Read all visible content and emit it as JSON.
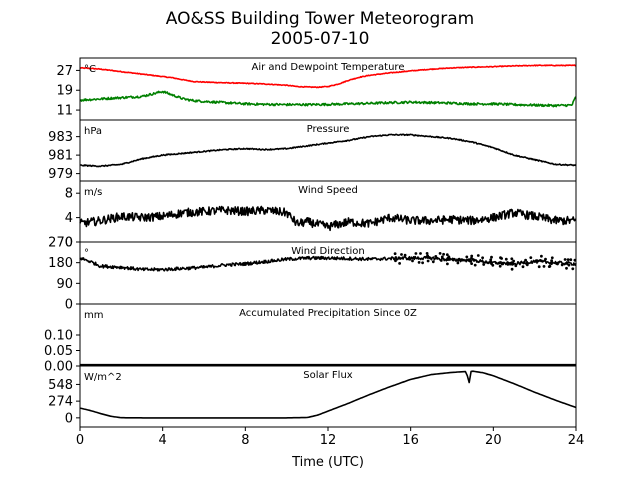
{
  "title_line1": "AO&SS Building Tower Meteorogram",
  "title_line2": "2005-07-10",
  "chart_data": {
    "type": "line",
    "xlabel": "Time (UTC)",
    "x_ticks": [
      "0",
      "4",
      "8",
      "12",
      "16",
      "20",
      "24"
    ],
    "xlim": [
      0,
      24
    ],
    "panels": [
      {
        "id": "temp",
        "title": "Air and Dewpoint Temperature",
        "unit": "°C",
        "ylim": [
          7,
          32
        ],
        "yticks": [
          {
            "v": 27,
            "label": "27"
          },
          {
            "v": 19,
            "label": "19"
          },
          {
            "v": 11,
            "label": "11"
          }
        ],
        "series": [
          {
            "color": "#ff0000",
            "noise": 0.15,
            "x": [
              0,
              0.5,
              1,
              1.5,
              2,
              2.5,
              3,
              3.5,
              4,
              4.5,
              5,
              5.5,
              6,
              7,
              8,
              9,
              10,
              10.5,
              11,
              11.5,
              12,
              12.5,
              13,
              13.5,
              14,
              15,
              16,
              17,
              18,
              19,
              20,
              21,
              22,
              23,
              24
            ],
            "y": [
              28,
              27.8,
              27.5,
              27,
              26.5,
              26,
              25.5,
              25,
              24.5,
              24,
              23.2,
              22.5,
              22.3,
              22,
              21.8,
              21.5,
              21,
              20.5,
              20.3,
              20.2,
              20.5,
              21.5,
              23,
              24.2,
              25,
              26,
              26.8,
              27.5,
              28,
              28.3,
              28.5,
              28.8,
              29,
              29,
              29
            ]
          },
          {
            "color": "#008000",
            "noise": 0.45,
            "x": [
              0,
              1,
              2,
              3,
              3.5,
              4,
              4.5,
              5,
              5.5,
              6,
              7,
              8,
              9,
              10,
              11,
              12,
              13,
              14,
              15,
              16,
              17,
              18,
              19,
              20,
              21,
              22,
              23,
              23.8,
              24
            ],
            "y": [
              15,
              15.5,
              16,
              16.5,
              17.5,
              18.5,
              17,
              15.5,
              14.8,
              14.5,
              14,
              13.5,
              13.3,
              13.2,
              13.2,
              13.3,
              13.5,
              13.7,
              14,
              14.2,
              14,
              13.8,
              13.5,
              13.5,
              13.2,
              13,
              12.8,
              13,
              16.5
            ]
          }
        ]
      },
      {
        "id": "pressure",
        "title": "Pressure",
        "unit": "hPa",
        "ylim": [
          978.2,
          984.8
        ],
        "yticks": [
          {
            "v": 983,
            "label": "983"
          },
          {
            "v": 981,
            "label": "981"
          },
          {
            "v": 979,
            "label": "979"
          }
        ],
        "series": [
          {
            "color": "#000000",
            "noise": 0.06,
            "x": [
              0,
              1,
              2,
              3,
              4,
              5,
              6,
              7,
              8,
              9,
              10,
              11,
              12,
              13,
              14,
              15,
              16,
              17,
              18,
              19,
              20,
              21,
              22,
              23,
              24
            ],
            "y": [
              979.9,
              979.8,
              980.0,
              980.6,
              981.0,
              981.2,
              981.4,
              981.6,
              981.7,
              981.6,
              981.7,
              982.0,
              982.3,
              982.6,
              983.0,
              983.2,
              983.2,
              983.0,
              982.8,
              982.4,
              981.8,
              981.0,
              980.5,
              980.0,
              979.9
            ]
          }
        ]
      },
      {
        "id": "wind-speed",
        "title": "Wind Speed",
        "unit": "m/s",
        "ylim": [
          0,
          10
        ],
        "yticks": [
          {
            "v": 8,
            "label": "8"
          },
          {
            "v": 4,
            "label": "4"
          },
          {
            "v": 0,
            "label": "0"
          }
        ],
        "series": [
          {
            "color": "#000000",
            "noise": 0.7,
            "x": [
              0,
              1,
              2,
              3,
              4,
              5,
              6,
              7,
              8,
              9,
              10,
              10.5,
              11,
              12,
              13,
              14,
              15,
              16,
              17,
              18,
              19,
              20,
              21,
              22,
              23,
              24
            ],
            "y": [
              3,
              3.5,
              4.2,
              4,
              4.2,
              4.8,
              5,
              5.2,
              5,
              5.2,
              4.8,
              3,
              3.3,
              2.5,
              3.3,
              3,
              4,
              3.5,
              3.5,
              3.7,
              3.5,
              4,
              4.8,
              4.2,
              3.5,
              3.5
            ]
          }
        ]
      },
      {
        "id": "wind-direction",
        "title": "Wind Direction",
        "unit": "°",
        "ylim": [
          0,
          270
        ],
        "yticks": [
          {
            "v": 270,
            "label": "270"
          },
          {
            "v": 180,
            "label": "180"
          },
          {
            "v": 90,
            "label": "90"
          },
          {
            "v": 0,
            "label": "0"
          }
        ],
        "series": [
          {
            "color": "#000000",
            "noise": 7,
            "x": [
              0,
              0.5,
              1,
              2,
              3,
              4,
              5,
              6,
              7,
              8,
              9,
              10,
              11,
              12,
              13,
              14,
              15,
              16,
              17,
              18,
              19,
              20,
              21,
              22,
              23,
              24
            ],
            "y": [
              200,
              185,
              165,
              160,
              150,
              150,
              155,
              160,
              170,
              175,
              185,
              195,
              200,
              200,
              198,
              195,
              198,
              200,
              200,
              192,
              190,
              180,
              175,
              185,
              180,
              175
            ]
          }
        ]
      },
      {
        "id": "precip",
        "title": "Accumulated Precipitation Since 0Z",
        "unit": "mm",
        "ylim": [
          0,
          0.2
        ],
        "yticks": [
          {
            "v": 0.1,
            "label": "0.10"
          },
          {
            "v": 0.05,
            "label": "0.05"
          },
          {
            "v": 0,
            "label": "0.00"
          }
        ],
        "series": [
          {
            "color": "#000000",
            "noise": 0,
            "x": [
              0,
              24
            ],
            "y": [
              0,
              0
            ]
          }
        ]
      },
      {
        "id": "solar",
        "title": "Solar Flux",
        "unit": "W/m^2",
        "ylim": [
          -150,
          850
        ],
        "yticks": [
          {
            "v": 548,
            "label": "548"
          },
          {
            "v": 274,
            "label": "274"
          },
          {
            "v": 0,
            "label": "0"
          }
        ],
        "series": [
          {
            "color": "#000000",
            "noise": 0,
            "x": [
              0,
              0.5,
              1,
              1.5,
              2,
              3,
              6,
              10,
              11,
              11.5,
              12,
              13,
              14,
              15,
              16,
              17,
              18,
              18.7,
              18.8,
              18.85,
              18.9,
              19,
              19.5,
              20,
              21,
              22,
              23,
              24
            ],
            "y": [
              160,
              120,
              70,
              25,
              2,
              0,
              0,
              0,
              5,
              45,
              110,
              240,
              380,
              510,
              630,
              710,
              745,
              760,
              580,
              580,
              760,
              765,
              740,
              690,
              560,
              420,
              290,
              170
            ]
          }
        ]
      }
    ]
  }
}
